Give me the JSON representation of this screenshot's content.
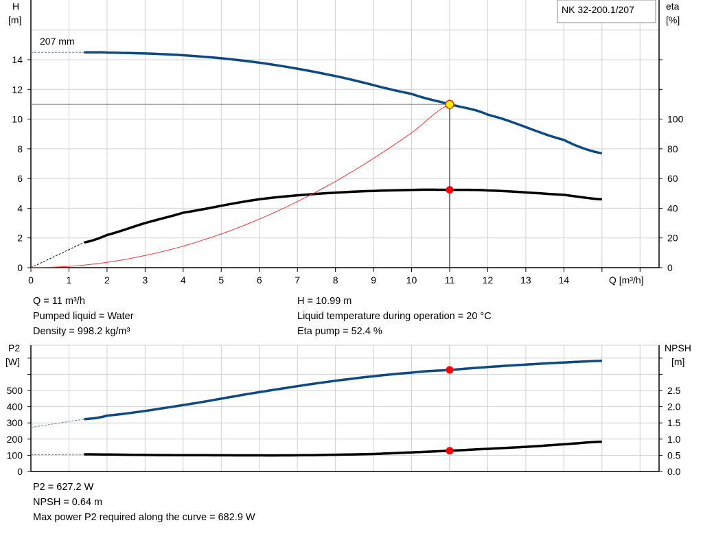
{
  "model_label": "NK 32-200.1/207",
  "impeller_label": "207 mm",
  "operating_info": {
    "left": [
      "Q = 11 m³/h",
      "Pumped liquid = Water",
      "Density = 998.2 kg/m³"
    ],
    "right": [
      "H = 10.99 m",
      "Liquid temperature during operation = 20 °C",
      "Eta pump = 52.4 %"
    ]
  },
  "bottom_info": [
    "P2 = 627.2 W",
    "NPSH = 0.64 m",
    "Max power P2 required along the curve = 682.9 W"
  ],
  "colors": {
    "head": "#0d4a85",
    "eta": "#000000",
    "system": "#ff3030",
    "point": "#ff0000",
    "grid": "#d0d0d0"
  },
  "chart_data": [
    {
      "type": "line",
      "xlabel": "Q [m³/h]",
      "ylabel": "H [m]",
      "y2label": "eta [%]",
      "xlim": [
        0,
        16
      ],
      "ylim": [
        0,
        16
      ],
      "y2lim": [
        0,
        160
      ],
      "x_ticks": [
        "0",
        "1",
        "2",
        "3",
        "4",
        "5",
        "6",
        "7",
        "8",
        "9",
        "10",
        "11",
        "12",
        "13",
        "14"
      ],
      "y_ticks": [
        "0",
        "2",
        "4",
        "6",
        "8",
        "10",
        "12",
        "14"
      ],
      "y2_ticks": [
        "0",
        "20",
        "40",
        "60",
        "80",
        "100"
      ],
      "grid": true,
      "series": [
        {
          "key": "head",
          "axis": "left",
          "x": [
            1.4,
            2,
            4,
            6,
            8,
            10,
            11,
            12,
            14,
            15
          ],
          "y": [
            14.5,
            14.48,
            14.3,
            13.8,
            12.9,
            11.7,
            11.0,
            10.3,
            8.6,
            7.7
          ],
          "extrapolated": {
            "x": [
              0,
              1.4
            ],
            "y": [
              14.5,
              14.5
            ]
          }
        },
        {
          "key": "eta",
          "axis": "right",
          "x": [
            1.4,
            2,
            3,
            4,
            6,
            8,
            10,
            11,
            12,
            14,
            15
          ],
          "y": [
            17,
            22,
            30,
            37,
            46,
            50.5,
            52.3,
            52.4,
            52,
            49,
            46
          ],
          "extrapolated": {
            "x": [
              0,
              1.4
            ],
            "y": [
              0,
              17
            ]
          }
        },
        {
          "key": "system",
          "axis": "left",
          "x": [
            0,
            1,
            2,
            3,
            4,
            5,
            6,
            7,
            8,
            9,
            10,
            11
          ],
          "y": [
            0,
            0.09,
            0.36,
            0.82,
            1.45,
            2.27,
            3.27,
            4.45,
            5.81,
            7.36,
            9.08,
            10.99
          ]
        }
      ],
      "operating_point": {
        "q": 11,
        "h": 10.99,
        "eta": 52.4
      }
    },
    {
      "type": "line",
      "ylabel": "P2 [W]",
      "y2label": "NPSH [m]",
      "xlim": [
        0,
        16
      ],
      "ylim": [
        0,
        850
      ],
      "y2lim": [
        0,
        4.25
      ],
      "y_ticks": [
        "0",
        "100",
        "200",
        "300",
        "400",
        "500"
      ],
      "y2_ticks": [
        "0.0",
        "0.5",
        "1.0",
        "1.5",
        "2.0",
        "2.5"
      ],
      "grid": true,
      "series": [
        {
          "key": "p2",
          "axis": "left",
          "x": [
            1.4,
            2,
            4,
            6,
            8,
            10,
            11,
            12,
            13,
            14,
            15
          ],
          "y": [
            323,
            345,
            410,
            490,
            560,
            610,
            627,
            645,
            660,
            673,
            683
          ],
          "extrapolated": {
            "x": [
              0,
              1.4
            ],
            "y": [
              272,
              323
            ]
          }
        },
        {
          "key": "npsh",
          "axis": "right",
          "x": [
            1.4,
            3,
            5,
            7,
            9,
            10,
            11,
            12,
            13,
            14,
            15
          ],
          "y": [
            0.53,
            0.51,
            0.5,
            0.5,
            0.54,
            0.59,
            0.64,
            0.7,
            0.76,
            0.84,
            0.92
          ],
          "extrapolated": {
            "x": [
              0,
              1.4
            ],
            "y": [
              0.52,
              0.53
            ]
          }
        }
      ],
      "operating_point": {
        "q": 11,
        "p2": 627.2,
        "npsh": 0.64
      }
    }
  ]
}
